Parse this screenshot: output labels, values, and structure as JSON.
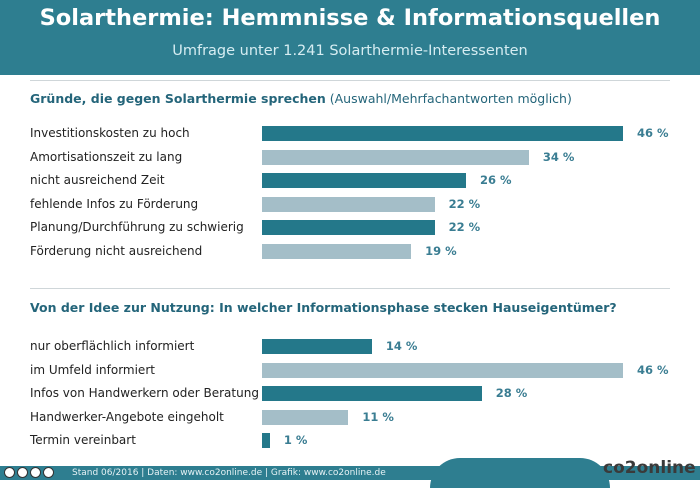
{
  "header": {
    "title": "Solarthermie: Hemmnisse & Informationsquellen",
    "subtitle": "Umfrage unter 1.241 Solarthermie-Interessenten"
  },
  "colors": {
    "header_bg": "#2e7e90",
    "bar_dark": "#24788a",
    "bar_light": "#a4bec8",
    "value_text": "#3a7d92"
  },
  "chart_data": [
    {
      "type": "bar",
      "title": "Gründe, die gegen Solarthermie sprechen",
      "title_note": "(Auswahl/Mehrfachantworten möglich)",
      "xlim": [
        0,
        46
      ],
      "value_format": "{v} %",
      "categories": [
        "Investitionskosten zu hoch",
        "Amortisationszeit zu lang",
        "nicht ausreichend Zeit",
        "fehlende Infos zu Förderung",
        "Planung/Durchführung zu schwierig",
        "Förderung nicht ausreichend"
      ],
      "values": [
        46,
        34,
        26,
        22,
        22,
        19
      ],
      "bar_colors": [
        "dark",
        "light",
        "dark",
        "light",
        "dark",
        "light"
      ],
      "value_labels": [
        "46 %",
        "34 %",
        "26 %",
        "22 %",
        "22 %",
        "19 %"
      ]
    },
    {
      "type": "bar",
      "title": "Von der Idee zur Nutzung: In welcher Informationsphase stecken Hauseigentümer?",
      "title_note": "",
      "xlim": [
        0,
        46
      ],
      "value_format": "{v} %",
      "categories": [
        "nur oberflächlich informiert",
        "im Umfeld informiert",
        "Infos von Handwerkern oder Beratung",
        "Handwerker-Angebote eingeholt",
        "Termin vereinbart"
      ],
      "values": [
        14,
        46,
        28,
        11,
        1
      ],
      "bar_colors": [
        "dark",
        "light",
        "dark",
        "light",
        "dark"
      ],
      "value_labels": [
        "14 %",
        "46 %",
        "28 %",
        "11 %",
        "1 %"
      ]
    }
  ],
  "footer": {
    "text": "Stand 06/2016   |   Daten: www.co2online.de   |   Grafik: www.co2online.de",
    "logo": "co2online",
    "license_icons": [
      "cc",
      "by",
      "nc",
      "nd"
    ]
  }
}
